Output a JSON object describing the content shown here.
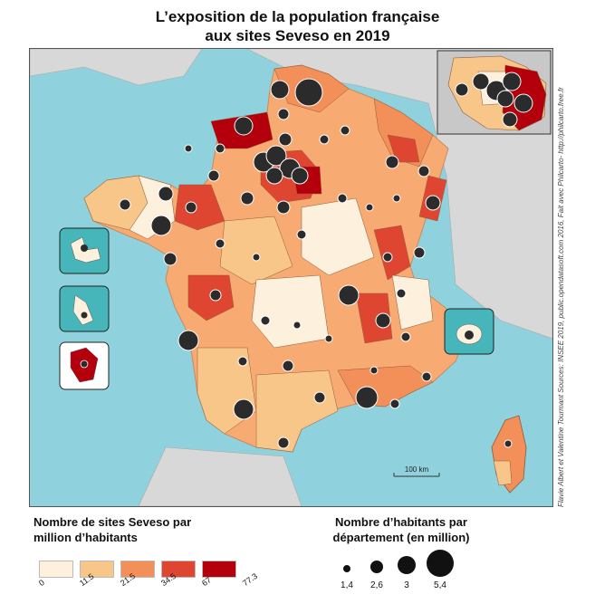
{
  "title_line1": "L’exposition de la population française",
  "title_line2": "aux sites Seveso en 2019",
  "credit": "Flavie Albert et Valentine Tourmant   Sources: INSEE 2019, public.opendatasoft.com 2016, Fait avec Philcarto- http://philcarto.free.fr",
  "scale_label": "100 km",
  "legend_rate": {
    "title_line1": "Nombre de sites Seveso par",
    "title_line2": "million d’habitants",
    "breaks": [
      "0",
      "11.5",
      "21.5",
      "34.5",
      "67",
      "77.3"
    ],
    "colors": [
      "#fdf0dc",
      "#f9c68a",
      "#f38f58",
      "#de4632",
      "#b3000c"
    ]
  },
  "legend_pop": {
    "title_line1": "Nombre d’habitants par",
    "title_line2": "département (en million)",
    "labels": [
      "1,4",
      "2,6",
      "3",
      "5,4"
    ]
  },
  "colors": {
    "sea": "#8fd1dc",
    "land_outside": "#d8d8d8",
    "bubble": "#2b2b2b",
    "inset_bg": "#46b6bb"
  }
}
